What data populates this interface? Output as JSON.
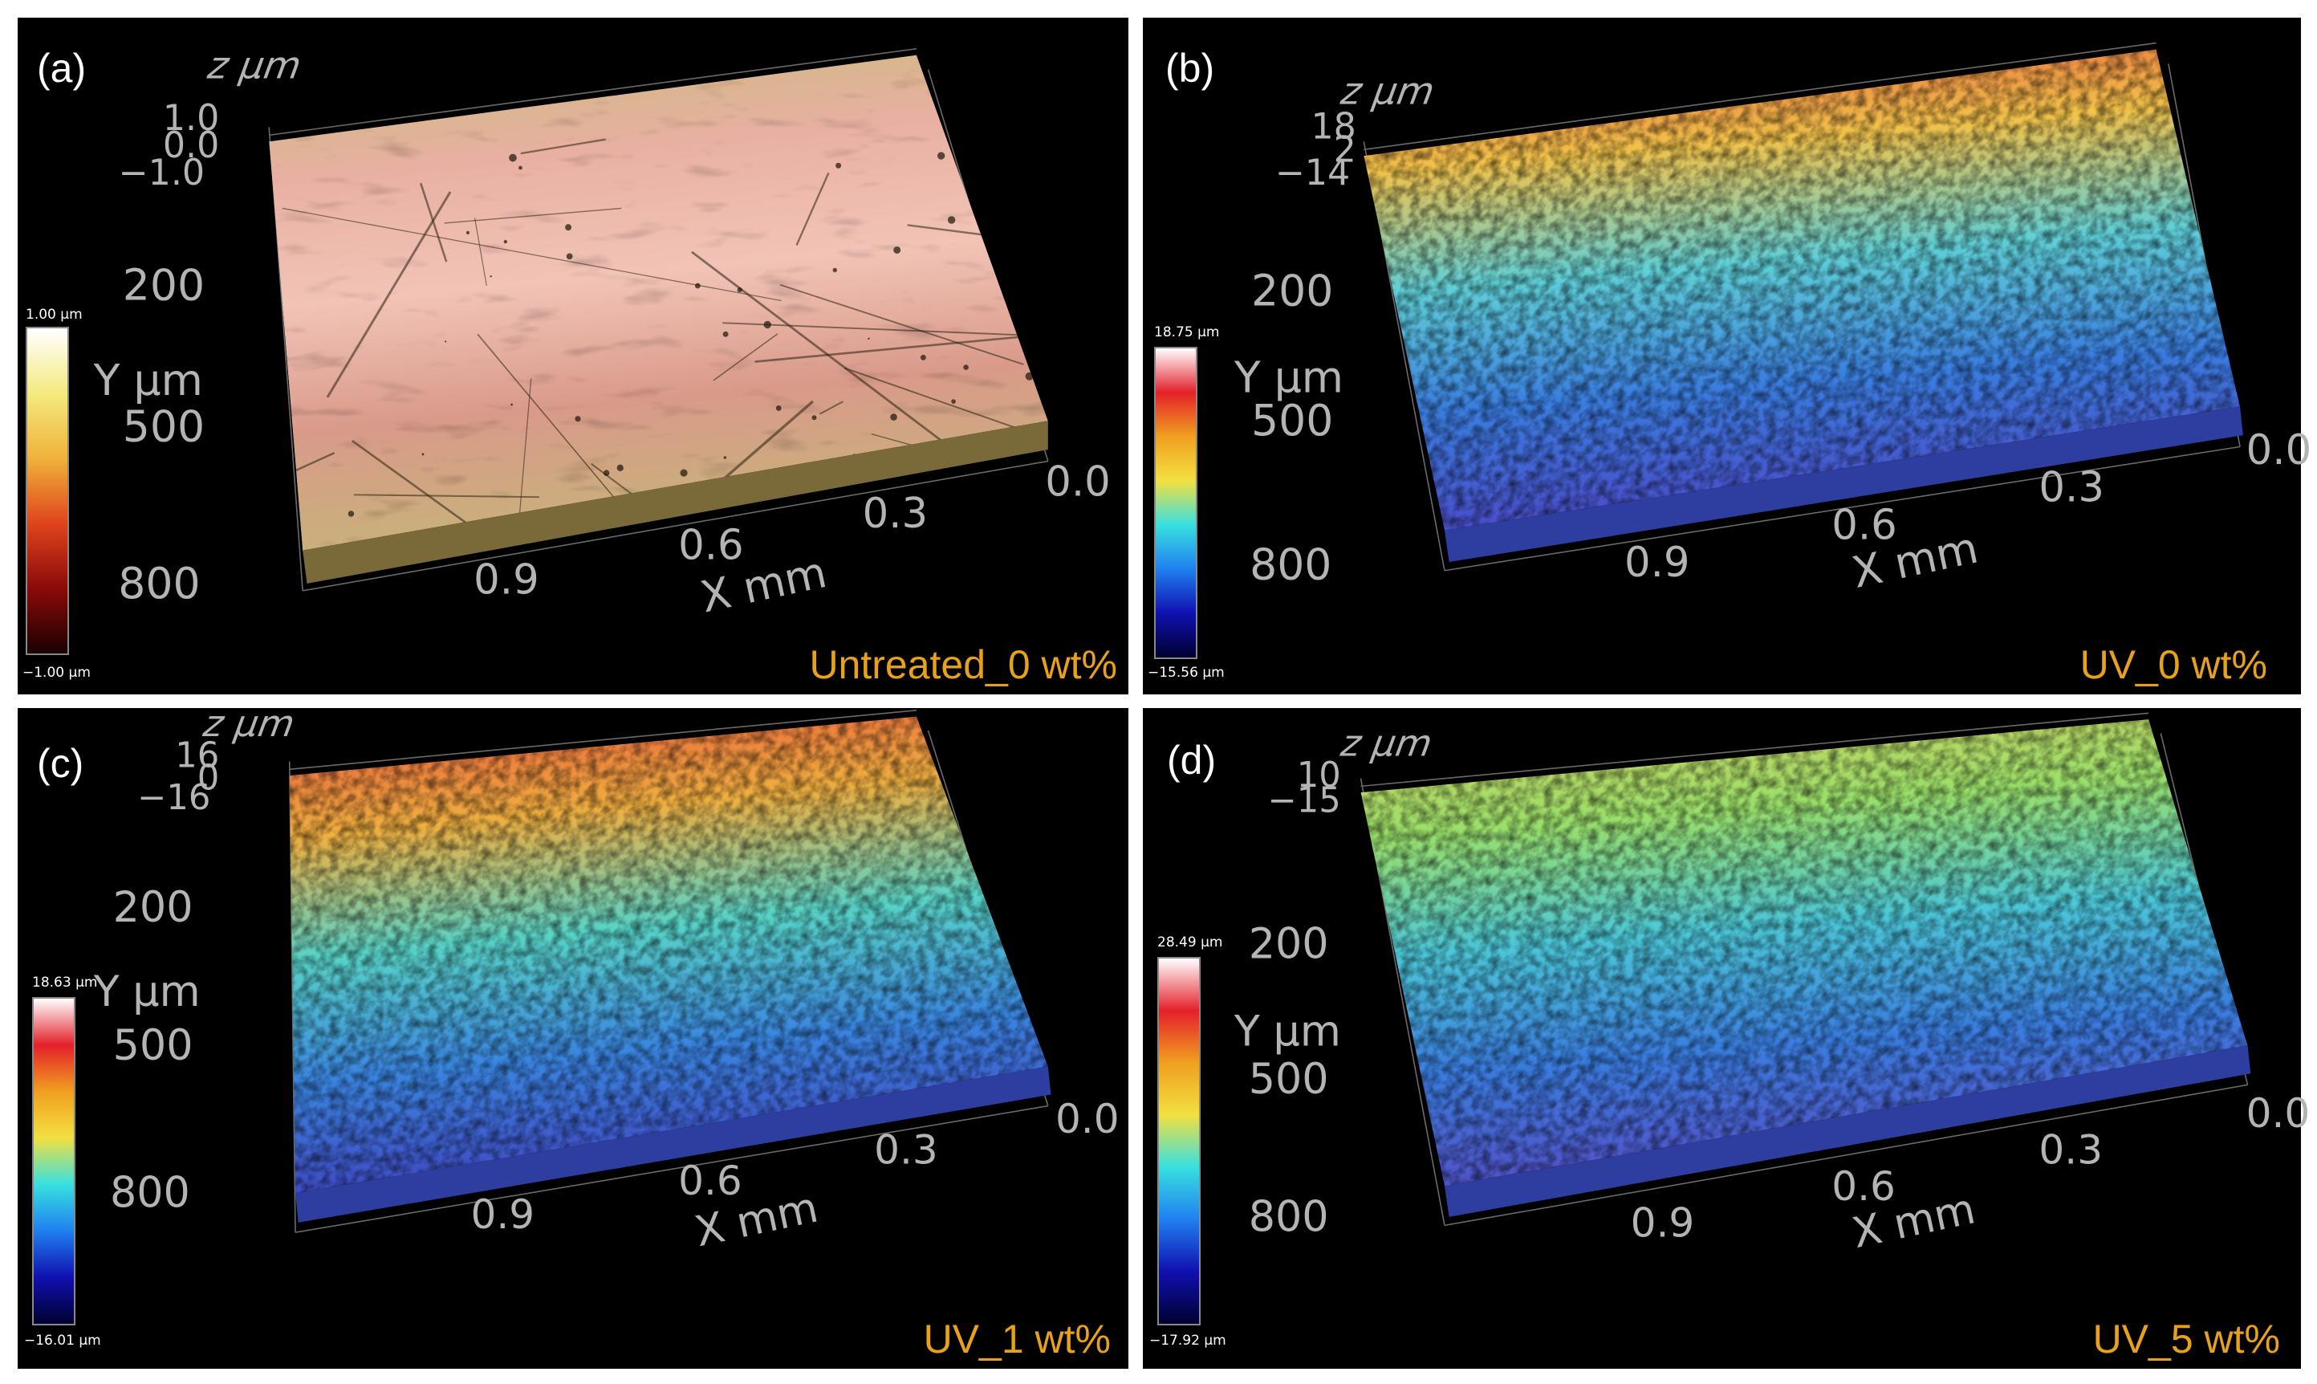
{
  "panels": [
    {
      "id": "a",
      "label": "(a)",
      "caption": "Untreated_0 wt%",
      "colorbar": {
        "max": "1.00 µm",
        "min": "−1.00 µm",
        "stops": [
          "#ffffff",
          "#f4ea7e",
          "#f0b23a",
          "#e0441c",
          "#8a0a0a",
          "#1a0000"
        ]
      },
      "z_axis": {
        "title": "z µm",
        "ticks": [
          "1.0",
          "0.0",
          "−1.0"
        ]
      },
      "y_axis": {
        "title": "Y µm",
        "ticks": [
          "200",
          "500",
          "800"
        ]
      },
      "x_axis": {
        "title": "X mm",
        "ticks": [
          "0.9",
          "0.6",
          "0.3",
          "0.0"
        ]
      },
      "surface_colors": [
        "#c9bb7c",
        "#e8b0a2",
        "#f2c4b6",
        "#d99a8a",
        "#c8b27a"
      ]
    },
    {
      "id": "b",
      "label": "(b)",
      "caption": "UV_0 wt%",
      "colorbar": {
        "max": "18.75 µm",
        "min": "−15.56 µm",
        "stops": [
          "#ffffff",
          "#e4202a",
          "#f0a020",
          "#f2e040",
          "#38e0e0",
          "#2080f0",
          "#1010b0",
          "#000030"
        ]
      },
      "z_axis": {
        "title": "z µm",
        "ticks": [
          "18",
          "2",
          "−14"
        ]
      },
      "y_axis": {
        "title": "Y µm",
        "ticks": [
          "200",
          "500",
          "800"
        ]
      },
      "x_axis": {
        "title": "X mm",
        "ticks": [
          "0.9",
          "0.6",
          "0.3",
          "0.0"
        ]
      },
      "surface_colors": [
        "#e8503a",
        "#f2c34a",
        "#5fd0d8",
        "#3a7ee0",
        "#4a4cc8"
      ]
    },
    {
      "id": "c",
      "label": "(c)",
      "caption": "UV_1 wt%",
      "colorbar": {
        "max": "18.63 µm",
        "min": "−16.01 µm",
        "stops": [
          "#ffffff",
          "#e4202a",
          "#f0a020",
          "#f2e040",
          "#38e0e0",
          "#2080f0",
          "#1010b0",
          "#000030"
        ]
      },
      "z_axis": {
        "title": "z µm",
        "ticks": [
          "16",
          "0",
          "−16"
        ]
      },
      "y_axis": {
        "title": "Y µm",
        "ticks": [
          "200",
          "500",
          "800"
        ]
      },
      "x_axis": {
        "title": "X mm",
        "ticks": [
          "0.9",
          "0.6",
          "0.3",
          "0.0"
        ]
      },
      "surface_colors": [
        "#e8503a",
        "#f0b040",
        "#58d4c8",
        "#3a86e0",
        "#4048c4"
      ]
    },
    {
      "id": "d",
      "label": "(d)",
      "caption": "UV_5 wt%",
      "colorbar": {
        "max": "28.49 µm",
        "min": "−17.92 µm",
        "stops": [
          "#ffffff",
          "#e4202a",
          "#f0a020",
          "#f2e040",
          "#38e0e0",
          "#2080f0",
          "#1010b0",
          "#000030"
        ]
      },
      "z_axis": {
        "title": "z µm",
        "ticks": [
          "10",
          "−15"
        ]
      },
      "y_axis": {
        "title": "Y µm",
        "ticks": [
          "200",
          "500",
          "800"
        ]
      },
      "x_axis": {
        "title": "X mm",
        "ticks": [
          "0.9",
          "0.6",
          "0.3",
          "0.0"
        ]
      },
      "surface_colors": [
        "#d8d060",
        "#9ae06a",
        "#4cc8d8",
        "#3a7ee0",
        "#5252c8"
      ]
    }
  ]
}
